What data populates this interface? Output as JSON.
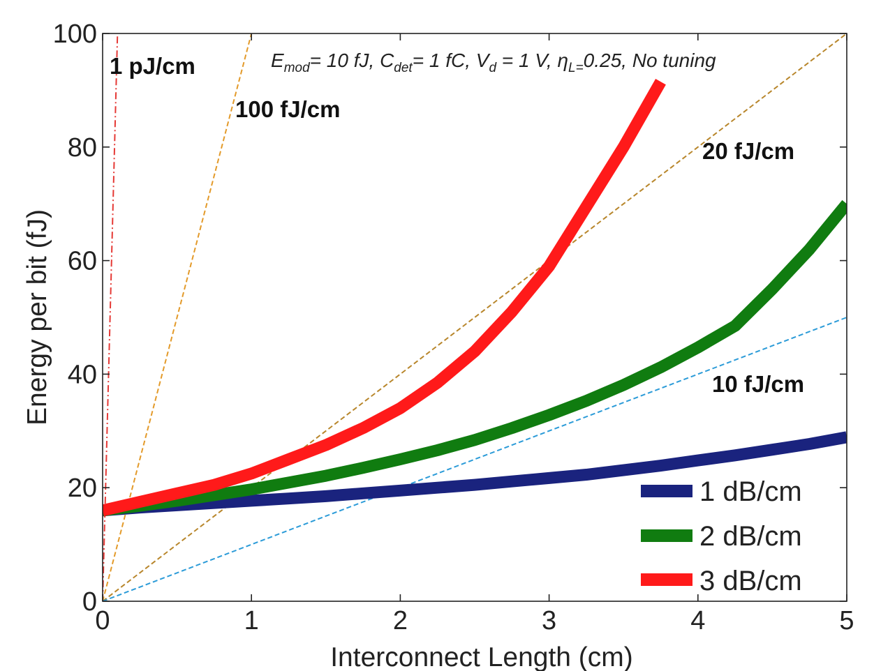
{
  "chart_data": {
    "type": "line",
    "xlabel": "Interconnect Length (cm)",
    "ylabel": "Energy per bit (fJ)",
    "xlim": [
      0,
      5
    ],
    "ylim": [
      0,
      100
    ],
    "xticks": [
      "0",
      "1",
      "2",
      "3",
      "4",
      "5"
    ],
    "yticks": [
      "0",
      "20",
      "40",
      "60",
      "80",
      "100"
    ],
    "grid": false,
    "legend_position": "bottom-right",
    "parameter_annotation": {
      "e_symbol": "E",
      "e_sub": "mod",
      "e_value": "= 10 fJ, ",
      "c_symbol": "C",
      "c_sub": "det",
      "c_value": "= 1 fC, ",
      "v_symbol": "V",
      "v_sub": "d",
      "v_value": " = 1 V, ",
      "eta_symbol": "η",
      "eta_sub": "L=",
      "eta_value": "0.25, No tuning"
    },
    "series": [
      {
        "name": "1 dB/cm",
        "color": "#1a237e",
        "x": [
          0,
          0.25,
          0.5,
          0.75,
          1,
          1.25,
          1.5,
          1.75,
          2,
          2.25,
          2.5,
          2.75,
          3,
          3.25,
          3.5,
          3.75,
          4,
          4.25,
          4.5,
          4.75,
          5
        ],
        "y": [
          16,
          16.5,
          16.9,
          17.3,
          17.7,
          18.1,
          18.5,
          19,
          19.5,
          20,
          20.5,
          21.1,
          21.7,
          22.3,
          23.1,
          23.9,
          24.8,
          25.7,
          26.7,
          27.7,
          28.9
        ]
      },
      {
        "name": "2 dB/cm",
        "color": "#107c10",
        "x": [
          0,
          0.25,
          0.5,
          0.75,
          1,
          1.25,
          1.5,
          1.75,
          2,
          2.25,
          2.5,
          2.75,
          3,
          3.25,
          3.5,
          3.75,
          4,
          4.25,
          4.5,
          4.75,
          5
        ],
        "y": [
          16,
          16.8,
          17.7,
          18.7,
          19.7,
          20.9,
          22.1,
          23.5,
          25,
          26.6,
          28.4,
          30.5,
          32.8,
          35.3,
          38.1,
          41.2,
          44.7,
          48.5,
          55,
          62,
          70
        ]
      },
      {
        "name": "3 dB/cm",
        "color": "#ff1a1a",
        "x": [
          0,
          0.25,
          0.5,
          0.75,
          1,
          1.25,
          1.5,
          1.75,
          2,
          2.25,
          2.5,
          2.75,
          3,
          3.25,
          3.5,
          3.75
        ],
        "y": [
          16,
          17.5,
          19,
          20.5,
          22.5,
          25,
          27.5,
          30.5,
          34,
          38.5,
          44,
          51,
          59,
          69.5,
          80,
          91.5
        ]
      }
    ],
    "reference_lines": [
      {
        "label": "1 pJ/cm",
        "slope": 1000,
        "color": "#e53935",
        "style": "dashdot"
      },
      {
        "label": "100 fJ/cm",
        "slope": 100,
        "color": "#e39a2a",
        "style": "dashed"
      },
      {
        "label": "20 fJ/cm",
        "slope": 20,
        "color": "#b8862b",
        "style": "dashed"
      },
      {
        "label": "10 fJ/cm",
        "slope": 10,
        "color": "#2b9bd8",
        "style": "dashed"
      }
    ]
  }
}
